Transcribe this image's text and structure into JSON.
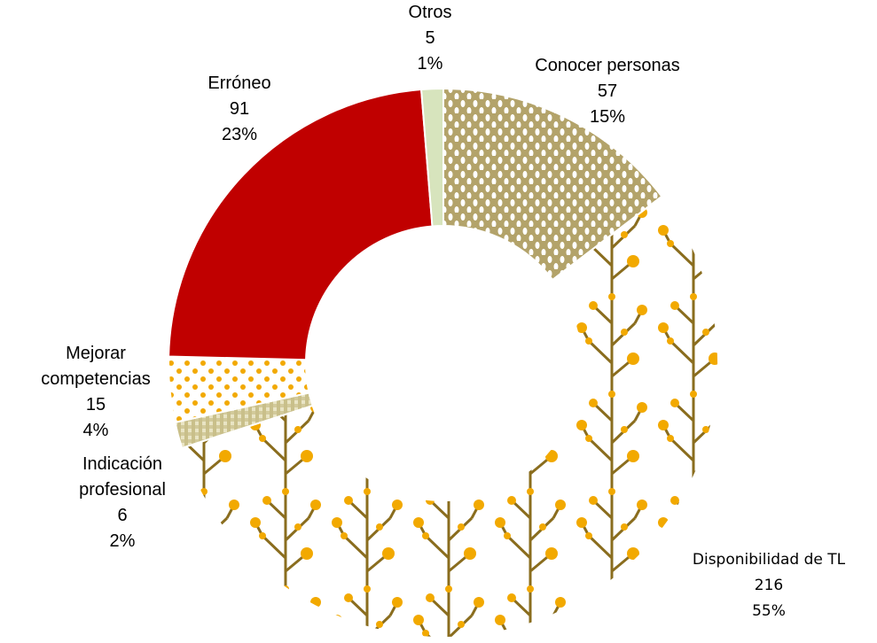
{
  "chart_data": {
    "type": "donut",
    "categories": [
      "Conocer personas",
      "Disponibilidad de TL",
      "Indicación profesional",
      "Mejorar competencias",
      "Erróneo",
      "Otros"
    ],
    "values": [
      57,
      216,
      6,
      15,
      91,
      5
    ],
    "percent_labels": [
      "15%",
      "55%",
      "2%",
      "4%",
      "23%",
      "1%"
    ],
    "colors": [
      "#b3a36a",
      "#f2a900",
      "#c9c08a",
      "#f2a900",
      "#c00000",
      "#d7e4bd"
    ],
    "fills": [
      "dots",
      "branches",
      "check",
      "dots",
      "solid",
      "solid"
    ]
  }
}
